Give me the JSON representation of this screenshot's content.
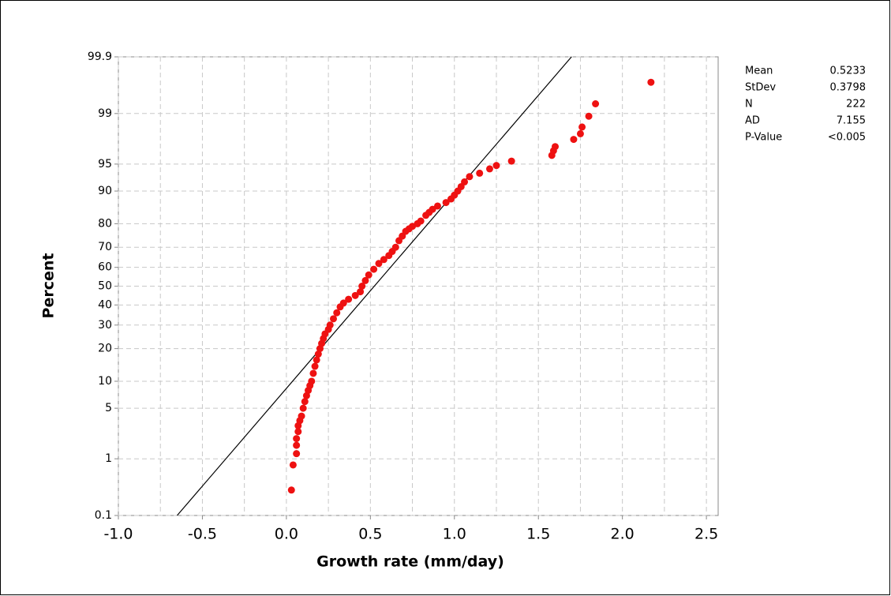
{
  "chart_data": {
    "type": "probability",
    "xlabel": "Growth rate (mm/day)",
    "ylabel": "Percent",
    "xlim": [
      -1.0,
      2.57
    ],
    "xticks": [
      {
        "value": -1.0,
        "label": "-1.0"
      },
      -0.5,
      {
        "value": 0.0,
        "label": "0.0"
      },
      0.5,
      {
        "value": 1.0,
        "label": "1.0"
      },
      1.5,
      {
        "value": 2.0,
        "label": "2.0"
      },
      2.5
    ],
    "ylim": [
      0.1,
      99.9
    ],
    "yticks": [
      0.1,
      1,
      5,
      10,
      20,
      30,
      40,
      50,
      60,
      70,
      80,
      90,
      95,
      99,
      99.9
    ],
    "grid": true,
    "point_color": "#ee1111",
    "line_color": "#000000",
    "stats": [
      {
        "label": "Mean",
        "value": 0.5233
      },
      {
        "label": "StDev",
        "value": 0.3798
      },
      {
        "label": "N",
        "value": 222
      },
      {
        "label": "AD",
        "value": 7.155
      },
      {
        "label": "P-Value",
        "value": "<0.005"
      }
    ],
    "x": [
      0.03,
      0.04,
      0.06,
      0.06,
      0.06,
      0.07,
      0.07,
      0.08,
      0.09,
      0.1,
      0.11,
      0.12,
      0.13,
      0.14,
      0.15,
      0.16,
      0.17,
      0.18,
      0.19,
      0.2,
      0.21,
      0.22,
      0.23,
      0.25,
      0.26,
      0.28,
      0.3,
      0.32,
      0.34,
      0.37,
      0.41,
      0.44,
      0.45,
      0.47,
      0.49,
      0.52,
      0.55,
      0.58,
      0.61,
      0.63,
      0.65,
      0.67,
      0.69,
      0.71,
      0.73,
      0.75,
      0.78,
      0.8,
      0.83,
      0.85,
      0.87,
      0.9,
      0.95,
      0.98,
      1.0,
      1.02,
      1.04,
      1.06,
      1.09,
      1.15,
      1.21,
      1.25,
      1.34,
      1.58,
      1.59,
      1.6,
      1.71,
      1.75,
      1.76,
      1.8,
      1.84,
      2.17
    ],
    "values": [
      0.3,
      0.8,
      1.2,
      1.6,
      2.0,
      2.5,
      3.0,
      3.5,
      4.0,
      5,
      6,
      7,
      8,
      9,
      10,
      12,
      14,
      16,
      18,
      20,
      22,
      24,
      26,
      28,
      30,
      33,
      36,
      39,
      41,
      43,
      45,
      47,
      50,
      53,
      56,
      59,
      62,
      64,
      66,
      68,
      70,
      73,
      75,
      77,
      78,
      79,
      80,
      81,
      83,
      84,
      85,
      86,
      87,
      88,
      89,
      90,
      91,
      92,
      93,
      93.6,
      94.3,
      94.8,
      95.4,
      96.1,
      96.6,
      97.0,
      97.6,
      98.0,
      98.4,
      98.9,
      99.3,
      99.7
    ]
  }
}
